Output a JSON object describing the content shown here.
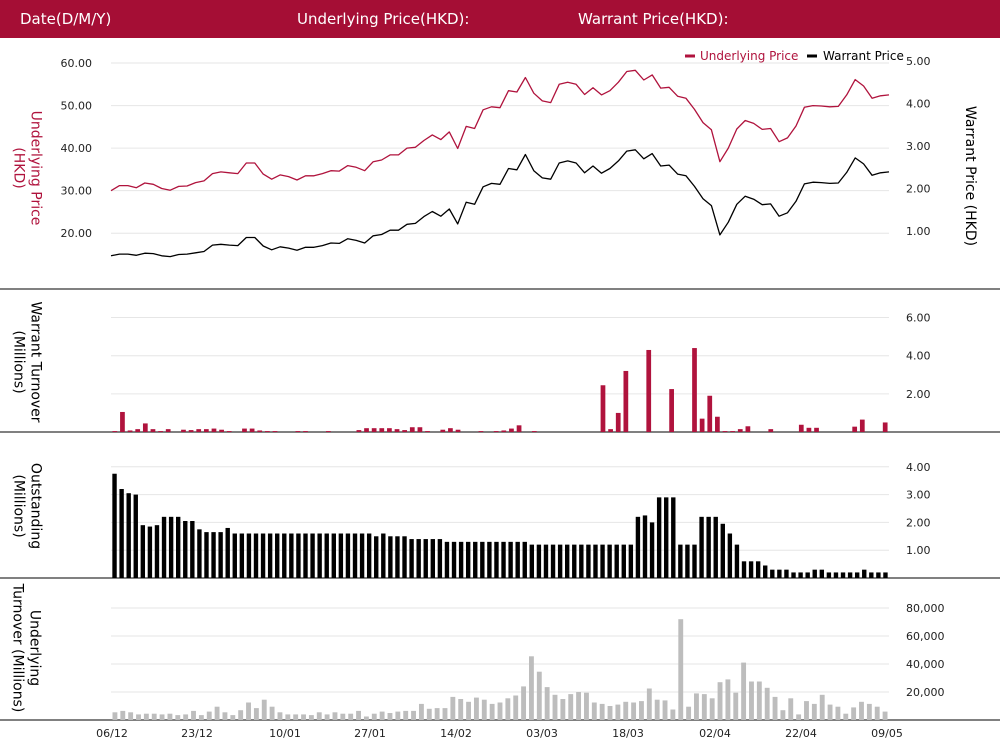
{
  "header": {
    "date_label": "Date(D/M/Y)",
    "underlying_label": "Underlying Price(HKD):",
    "warrant_label": "Warrant Price(HKD):"
  },
  "colors": {
    "header_bg": "#a50e35",
    "underlying": "#b0133d",
    "warrant": "#000000",
    "underlying_turnover": "#bdbdbd"
  },
  "chart_data": [
    {
      "type": "line",
      "legend_position": "top-right",
      "grid": true,
      "y_label_left": "Underlying Price (HKD)",
      "y_label_right": "Warrant  Price (HKD)",
      "y_left_ticks": [
        "20.00",
        "30.00",
        "40.00",
        "50.00",
        "60.00"
      ],
      "y_right_ticks": [
        "1.00",
        "2.00",
        "3.00",
        "4.00",
        "5.00"
      ],
      "ylim_left": [
        13.0,
        64.0
      ],
      "ylim_right": [
        0.25,
        5.35
      ],
      "series": [
        {
          "name": "Underlying Price",
          "axis": "left",
          "values": [
            30.0,
            31.2,
            31.2,
            30.7,
            31.8,
            31.5,
            30.5,
            30.1,
            31.0,
            31.1,
            31.9,
            32.3,
            34.0,
            34.4,
            34.2,
            34.0,
            36.5,
            36.5,
            33.9,
            32.7,
            33.7,
            33.3,
            32.5,
            33.5,
            33.5,
            34.0,
            34.7,
            34.6,
            35.9,
            35.5,
            34.7,
            36.8,
            37.2,
            38.4,
            38.4,
            40.0,
            40.2,
            41.8,
            43.1,
            42.0,
            43.8,
            39.9,
            45.1,
            44.6,
            49.0,
            49.7,
            49.5,
            53.5,
            53.2,
            56.6,
            52.9,
            51.1,
            50.7,
            55.0,
            55.5,
            55.0,
            52.6,
            54.2,
            52.5,
            53.5,
            55.5,
            58.0,
            58.3,
            56.0,
            57.2,
            54.1,
            54.3,
            52.2,
            51.7,
            49.1,
            46.0,
            44.3,
            36.8,
            40.0,
            44.5,
            46.5,
            45.8,
            44.4,
            44.6,
            41.5,
            42.4,
            45.2,
            49.6,
            50.0,
            49.9,
            49.7,
            49.8,
            52.5,
            56.1,
            54.6,
            51.7,
            52.3,
            52.5
          ]
        },
        {
          "name": "Warrant Price",
          "axis": "right",
          "values": [
            0.42,
            0.46,
            0.46,
            0.43,
            0.48,
            0.47,
            0.42,
            0.4,
            0.45,
            0.46,
            0.49,
            0.52,
            0.67,
            0.69,
            0.67,
            0.66,
            0.85,
            0.85,
            0.65,
            0.56,
            0.63,
            0.6,
            0.55,
            0.62,
            0.62,
            0.66,
            0.72,
            0.71,
            0.82,
            0.78,
            0.72,
            0.89,
            0.92,
            1.02,
            1.02,
            1.16,
            1.18,
            1.34,
            1.46,
            1.35,
            1.52,
            1.17,
            1.68,
            1.63,
            2.04,
            2.12,
            2.1,
            2.47,
            2.44,
            2.8,
            2.42,
            2.25,
            2.22,
            2.6,
            2.65,
            2.6,
            2.37,
            2.53,
            2.36,
            2.47,
            2.65,
            2.88,
            2.91,
            2.7,
            2.82,
            2.53,
            2.55,
            2.34,
            2.3,
            2.05,
            1.76,
            1.6,
            0.91,
            1.21,
            1.63,
            1.82,
            1.75,
            1.62,
            1.64,
            1.35,
            1.43,
            1.7,
            2.11,
            2.15,
            2.14,
            2.12,
            2.13,
            2.38,
            2.72,
            2.58,
            2.31,
            2.37,
            2.39
          ]
        }
      ]
    },
    {
      "type": "bar",
      "y_label": "Warrant  Turnover (Millions)",
      "y_ticks": [
        "2.00",
        "4.00",
        "6.00"
      ],
      "ylim": [
        0,
        6.5
      ],
      "grid": true,
      "color": "#b0133d",
      "values": [
        0.05,
        1.05,
        0.08,
        0.15,
        0.45,
        0.15,
        0.05,
        0.15,
        0.0,
        0.12,
        0.1,
        0.15,
        0.15,
        0.18,
        0.12,
        0.05,
        0.0,
        0.18,
        0.18,
        0.08,
        0.05,
        0.05,
        0.0,
        0.0,
        0.05,
        0.05,
        0.0,
        0.0,
        0.05,
        0.0,
        0.0,
        0.0,
        0.1,
        0.2,
        0.2,
        0.2,
        0.2,
        0.15,
        0.1,
        0.25,
        0.25,
        0.05,
        0.0,
        0.12,
        0.2,
        0.12,
        0.0,
        0.0,
        0.05,
        0.0,
        0.05,
        0.08,
        0.18,
        0.35,
        0.0,
        0.05,
        0.0,
        0.0,
        0.0,
        0.0,
        0.0,
        0.0,
        0.0,
        0.0,
        2.45,
        0.15,
        1.0,
        3.2,
        0.0,
        0.0,
        4.3,
        0.0,
        0.0,
        2.25,
        0.0,
        0.0,
        4.4,
        0.7,
        1.9,
        0.8,
        0.05,
        0.05,
        0.15,
        0.3,
        0.0,
        0.0,
        0.15,
        0.0,
        0.0,
        0.0,
        0.38,
        0.22,
        0.22,
        0.0,
        0.0,
        0.0,
        0.0,
        0.28,
        0.65,
        0.0,
        0.0,
        0.5
      ]
    },
    {
      "type": "bar",
      "y_label": "Outstanding (Millions)",
      "y_ticks": [
        "1.00",
        "2.00",
        "3.00",
        "4.00"
      ],
      "ylim": [
        0,
        4.1
      ],
      "grid": true,
      "color": "#000000",
      "values": [
        3.75,
        3.2,
        3.05,
        3.0,
        1.9,
        1.85,
        1.9,
        2.2,
        2.2,
        2.2,
        2.05,
        2.05,
        1.75,
        1.65,
        1.65,
        1.65,
        1.8,
        1.6,
        1.6,
        1.6,
        1.6,
        1.6,
        1.6,
        1.6,
        1.6,
        1.6,
        1.6,
        1.6,
        1.6,
        1.6,
        1.6,
        1.6,
        1.6,
        1.6,
        1.6,
        1.6,
        1.6,
        1.5,
        1.6,
        1.5,
        1.5,
        1.5,
        1.4,
        1.4,
        1.4,
        1.4,
        1.4,
        1.3,
        1.3,
        1.3,
        1.3,
        1.3,
        1.3,
        1.3,
        1.3,
        1.3,
        1.3,
        1.3,
        1.3,
        1.2,
        1.2,
        1.2,
        1.2,
        1.2,
        1.2,
        1.2,
        1.2,
        1.2,
        1.2,
        1.2,
        1.2,
        1.2,
        1.2,
        1.2,
        2.2,
        2.25,
        2.0,
        2.9,
        2.9,
        2.9,
        1.2,
        1.2,
        1.2,
        2.2,
        2.2,
        2.2,
        1.95,
        1.6,
        1.2,
        0.6,
        0.6,
        0.6,
        0.45,
        0.3,
        0.3,
        0.3,
        0.2,
        0.2,
        0.2,
        0.3,
        0.3,
        0.2,
        0.2,
        0.2,
        0.2,
        0.2,
        0.3,
        0.2,
        0.2,
        0.2
      ]
    },
    {
      "type": "bar",
      "y_label": "Underlying Turnover (Millions)",
      "y_ticks": [
        "20,000",
        "40,000",
        "60,000",
        "80,000"
      ],
      "ylim": [
        0,
        85000
      ],
      "grid": true,
      "color": "#bdbdbd",
      "x_ticks": [
        "06/12",
        "23/12",
        "10/01",
        "27/01",
        "14/02",
        "03/03",
        "18/03",
        "02/04",
        "22/04",
        "09/05"
      ],
      "values": [
        5500,
        6500,
        5500,
        4000,
        4500,
        4500,
        4000,
        4500,
        3500,
        4000,
        6500,
        3500,
        6000,
        9500,
        5500,
        3500,
        7000,
        12500,
        8500,
        14500,
        9500,
        5500,
        4000,
        4000,
        4000,
        3500,
        5500,
        4000,
        5500,
        4500,
        4500,
        6500,
        2500,
        4500,
        6000,
        5000,
        6000,
        6500,
        6500,
        11500,
        8000,
        8500,
        8500,
        16500,
        15000,
        13000,
        16000,
        14500,
        11500,
        12500,
        15500,
        17500,
        24000,
        45500,
        34500,
        23500,
        18000,
        15000,
        18500,
        20000,
        19500,
        12500,
        11500,
        10000,
        11000,
        13000,
        12500,
        13500,
        22500,
        14500,
        14000,
        7500,
        72000,
        9500,
        19000,
        18500,
        15500,
        27000,
        29000,
        19500,
        41000,
        27500,
        27500,
        23000,
        16500,
        7000,
        15500,
        4000,
        13500,
        11500,
        18000,
        11000,
        9500,
        4500,
        9000,
        13000,
        11500,
        9500,
        6000
      ]
    }
  ]
}
